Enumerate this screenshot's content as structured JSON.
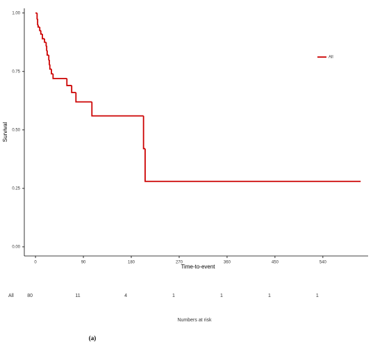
{
  "chart_data": {
    "type": "step",
    "x_label": "Time-to-event",
    "y_label": "Survival",
    "series": [
      {
        "name": "All",
        "color": "#cc0000",
        "x": [
          0,
          3,
          4,
          5,
          8,
          10,
          13,
          17,
          20,
          21,
          22,
          25,
          26,
          27,
          30,
          33,
          59,
          68,
          76,
          106,
          203,
          206,
          611
        ],
        "values": [
          1.0,
          0.975,
          0.95,
          0.94,
          0.925,
          0.91,
          0.89,
          0.875,
          0.86,
          0.84,
          0.82,
          0.8,
          0.78,
          0.76,
          0.74,
          0.72,
          0.69,
          0.66,
          0.62,
          0.56,
          0.42,
          0.28,
          0.28
        ]
      }
    ],
    "xlim": [
      -21,
      625
    ],
    "ylim": [
      -0.039,
      1.02
    ],
    "xticks": [
      0,
      90,
      180,
      270,
      360,
      450,
      540
    ],
    "yticks": [
      {
        "value": 0,
        "label": "0.00"
      },
      {
        "value": 0.25,
        "label": "0.25"
      },
      {
        "value": 0.5,
        "label": "0.50"
      },
      {
        "value": 0.75,
        "label": "0.75"
      },
      {
        "value": 1,
        "label": "1.00"
      }
    ],
    "legend": "top-right",
    "risk_table": {
      "title": "Numbers at risk",
      "label": "All",
      "values": [
        80,
        11,
        4,
        1,
        1,
        1,
        1
      ]
    },
    "caption": "(a)"
  }
}
